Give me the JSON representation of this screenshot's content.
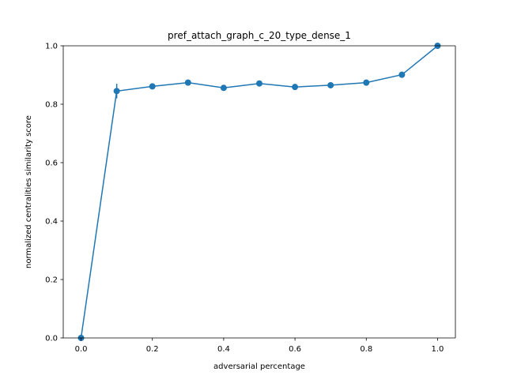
{
  "chart_data": {
    "type": "line",
    "title": "pref_attach_graph_c_20_type_dense_1",
    "xlabel": "adversarial percentage",
    "ylabel": "normalized centralities similarity score",
    "xlim": [
      -0.05,
      1.05
    ],
    "ylim": [
      0.0,
      1.0
    ],
    "xticks": [
      0.0,
      0.2,
      0.4,
      0.6,
      0.8,
      1.0
    ],
    "yticks": [
      0.0,
      0.2,
      0.4,
      0.6,
      0.8,
      1.0
    ],
    "xtick_labels": [
      "0.0",
      "0.2",
      "0.4",
      "0.6",
      "0.8",
      "1.0"
    ],
    "ytick_labels": [
      "0.0",
      "0.2",
      "0.4",
      "0.6",
      "0.8",
      "1.0"
    ],
    "grid": false,
    "color": "#1f77b4",
    "series": [
      {
        "x": [
          0.0,
          0.1,
          0.2,
          0.3,
          0.4,
          0.5,
          0.6,
          0.7,
          0.8,
          0.9,
          1.0
        ],
        "y": [
          0.0,
          0.845,
          0.861,
          0.874,
          0.856,
          0.871,
          0.859,
          0.865,
          0.874,
          0.901,
          1.0
        ],
        "yerr": [
          0.0,
          0.025,
          0.0,
          0.0,
          0.0,
          0.0,
          0.0,
          0.0,
          0.0,
          0.0,
          0.0
        ]
      }
    ]
  }
}
